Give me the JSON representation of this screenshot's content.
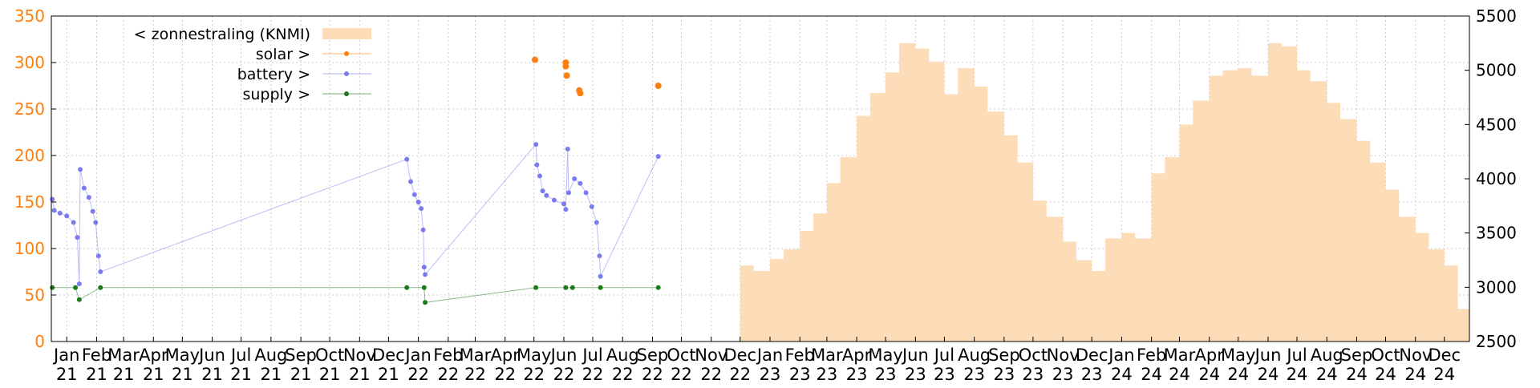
{
  "chart_data": {
    "type": "line",
    "title": "",
    "xlabel": "",
    "ylabel": "",
    "ylim": [
      0,
      350
    ],
    "y2lim": [
      2500,
      5500
    ],
    "y_ticks": [
      0,
      50,
      100,
      150,
      200,
      250,
      300,
      350
    ],
    "y2_ticks": [
      2500,
      3000,
      3500,
      4000,
      4500,
      5000,
      5500
    ],
    "x_range": [
      "2020-12-16",
      "2024-12-27"
    ],
    "x_ticks": [
      {
        "date": "2021-01-01",
        "label": [
          "Jan",
          "21"
        ]
      },
      {
        "date": "2021-02-01",
        "label": [
          "Feb",
          "21"
        ]
      },
      {
        "date": "2021-03-01",
        "label": [
          "Mar",
          "21"
        ]
      },
      {
        "date": "2021-04-01",
        "label": [
          "Apr",
          "21"
        ]
      },
      {
        "date": "2021-05-01",
        "label": [
          "May",
          "21"
        ]
      },
      {
        "date": "2021-06-01",
        "label": [
          "Jun",
          "21"
        ]
      },
      {
        "date": "2021-07-01",
        "label": [
          "Jul",
          "21"
        ]
      },
      {
        "date": "2021-08-01",
        "label": [
          "Aug",
          "21"
        ]
      },
      {
        "date": "2021-09-01",
        "label": [
          "Sep",
          "21"
        ]
      },
      {
        "date": "2021-10-01",
        "label": [
          "Oct",
          "21"
        ]
      },
      {
        "date": "2021-11-01",
        "label": [
          "Nov",
          "21"
        ]
      },
      {
        "date": "2021-12-01",
        "label": [
          "Dec",
          "21"
        ]
      },
      {
        "date": "2022-01-01",
        "label": [
          "Jan",
          "22"
        ]
      },
      {
        "date": "2022-02-01",
        "label": [
          "Feb",
          "22"
        ]
      },
      {
        "date": "2022-03-01",
        "label": [
          "Mar",
          "22"
        ]
      },
      {
        "date": "2022-04-01",
        "label": [
          "Apr",
          "22"
        ]
      },
      {
        "date": "2022-05-01",
        "label": [
          "May",
          "22"
        ]
      },
      {
        "date": "2022-06-01",
        "label": [
          "Jun",
          "22"
        ]
      },
      {
        "date": "2022-07-01",
        "label": [
          "Jul",
          "22"
        ]
      },
      {
        "date": "2022-08-01",
        "label": [
          "Aug",
          "22"
        ]
      },
      {
        "date": "2022-09-01",
        "label": [
          "Sep",
          "22"
        ]
      },
      {
        "date": "2022-10-01",
        "label": [
          "Oct",
          "22"
        ]
      },
      {
        "date": "2022-11-01",
        "label": [
          "Nov",
          "22"
        ]
      },
      {
        "date": "2022-12-01",
        "label": [
          "Dec",
          "22"
        ]
      },
      {
        "date": "2023-01-01",
        "label": [
          "Jan",
          "23"
        ]
      },
      {
        "date": "2023-02-01",
        "label": [
          "Feb",
          "23"
        ]
      },
      {
        "date": "2023-03-01",
        "label": [
          "Mar",
          "23"
        ]
      },
      {
        "date": "2023-04-01",
        "label": [
          "Apr",
          "23"
        ]
      },
      {
        "date": "2023-05-01",
        "label": [
          "May",
          "23"
        ]
      },
      {
        "date": "2023-06-01",
        "label": [
          "Jun",
          "23"
        ]
      },
      {
        "date": "2023-07-01",
        "label": [
          "Jul",
          "23"
        ]
      },
      {
        "date": "2023-08-01",
        "label": [
          "Aug",
          "23"
        ]
      },
      {
        "date": "2023-09-01",
        "label": [
          "Sep",
          "23"
        ]
      },
      {
        "date": "2023-10-01",
        "label": [
          "Oct",
          "23"
        ]
      },
      {
        "date": "2023-11-01",
        "label": [
          "Nov",
          "23"
        ]
      },
      {
        "date": "2023-12-01",
        "label": [
          "Dec",
          "23"
        ]
      },
      {
        "date": "2024-01-01",
        "label": [
          "Jan",
          "24"
        ]
      },
      {
        "date": "2024-02-01",
        "label": [
          "Feb",
          "24"
        ]
      },
      {
        "date": "2024-03-01",
        "label": [
          "Mar",
          "24"
        ]
      },
      {
        "date": "2024-04-01",
        "label": [
          "Apr",
          "24"
        ]
      },
      {
        "date": "2024-05-01",
        "label": [
          "May",
          "24"
        ]
      },
      {
        "date": "2024-06-01",
        "label": [
          "Jun",
          "24"
        ]
      },
      {
        "date": "2024-07-01",
        "label": [
          "Jul",
          "24"
        ]
      },
      {
        "date": "2024-08-01",
        "label": [
          "Aug",
          "24"
        ]
      },
      {
        "date": "2024-09-01",
        "label": [
          "Sep",
          "24"
        ]
      },
      {
        "date": "2024-10-01",
        "label": [
          "Oct",
          "24"
        ]
      },
      {
        "date": "2024-11-01",
        "label": [
          "Nov",
          "24"
        ]
      },
      {
        "date": "2024-12-01",
        "label": [
          "Dec",
          "24"
        ]
      }
    ],
    "grid": true,
    "legend_position": "top-left",
    "series": [
      {
        "name": "< zonnestraling (KNMI)",
        "type": "area",
        "axis": "y2",
        "color": "#fddcb8",
        "points": [
          [
            "2022-12-01",
            3200
          ],
          [
            "2022-12-15",
            3150
          ],
          [
            "2023-01-01",
            3260
          ],
          [
            "2023-01-15",
            3350
          ],
          [
            "2023-02-01",
            3520
          ],
          [
            "2023-02-15",
            3680
          ],
          [
            "2023-03-01",
            3960
          ],
          [
            "2023-03-15",
            4200
          ],
          [
            "2023-04-01",
            4580
          ],
          [
            "2023-04-15",
            4790
          ],
          [
            "2023-05-01",
            4980
          ],
          [
            "2023-05-15",
            5250
          ],
          [
            "2023-06-01",
            5200
          ],
          [
            "2023-06-15",
            5080
          ],
          [
            "2023-07-01",
            4780
          ],
          [
            "2023-07-15",
            5020
          ],
          [
            "2023-08-01",
            4850
          ],
          [
            "2023-08-15",
            4620
          ],
          [
            "2023-09-01",
            4400
          ],
          [
            "2023-09-15",
            4150
          ],
          [
            "2023-10-01",
            3800
          ],
          [
            "2023-10-15",
            3650
          ],
          [
            "2023-11-01",
            3420
          ],
          [
            "2023-11-15",
            3250
          ],
          [
            "2023-12-01",
            3150
          ],
          [
            "2023-12-15",
            3450
          ],
          [
            "2024-01-01",
            3500
          ],
          [
            "2024-01-15",
            3450
          ],
          [
            "2024-02-01",
            4050
          ],
          [
            "2024-02-15",
            4200
          ],
          [
            "2024-03-01",
            4500
          ],
          [
            "2024-03-15",
            4720
          ],
          [
            "2024-04-01",
            4950
          ],
          [
            "2024-04-15",
            5000
          ],
          [
            "2024-05-01",
            5020
          ],
          [
            "2024-05-15",
            4950
          ],
          [
            "2024-06-01",
            5250
          ],
          [
            "2024-06-15",
            5220
          ],
          [
            "2024-07-01",
            5000
          ],
          [
            "2024-07-15",
            4900
          ],
          [
            "2024-08-01",
            4700
          ],
          [
            "2024-08-15",
            4550
          ],
          [
            "2024-09-01",
            4350
          ],
          [
            "2024-09-15",
            4150
          ],
          [
            "2024-10-01",
            3900
          ],
          [
            "2024-10-15",
            3650
          ],
          [
            "2024-11-01",
            3500
          ],
          [
            "2024-11-15",
            3350
          ],
          [
            "2024-12-01",
            3200
          ],
          [
            "2024-12-15",
            2800
          ]
        ]
      },
      {
        "name": "solar >",
        "type": "scatter",
        "axis": "y",
        "color": "#ff7f0e",
        "points": [
          [
            "2022-05-02",
            303
          ],
          [
            "2022-06-03",
            300
          ],
          [
            "2022-06-03",
            296
          ],
          [
            "2022-06-04",
            286
          ],
          [
            "2022-06-17",
            270
          ],
          [
            "2022-06-18",
            267
          ],
          [
            "2022-09-07",
            275
          ]
        ]
      },
      {
        "name": "battery >",
        "type": "line",
        "axis": "y",
        "color": "#7b7bf0",
        "points": [
          [
            "2020-12-17",
            153
          ],
          [
            "2020-12-19",
            141
          ],
          [
            "2020-12-25",
            138
          ],
          [
            "2021-01-01",
            135
          ],
          [
            "2021-01-08",
            128
          ],
          [
            "2021-01-12",
            112
          ],
          [
            "2021-01-14",
            62
          ],
          [
            "2021-01-15",
            185
          ],
          [
            "2021-01-19",
            165
          ],
          [
            "2021-01-24",
            155
          ],
          [
            "2021-01-28",
            140
          ],
          [
            "2021-01-31",
            128
          ],
          [
            "2021-02-03",
            92
          ],
          [
            "2021-02-05",
            75
          ],
          [
            "2021-12-20",
            196
          ],
          [
            "2021-12-24",
            172
          ],
          [
            "2021-12-28",
            158
          ],
          [
            "2022-01-01",
            150
          ],
          [
            "2022-01-04",
            143
          ],
          [
            "2022-01-06",
            120
          ],
          [
            "2022-01-07",
            80
          ],
          [
            "2022-01-08",
            72
          ],
          [
            "2022-05-03",
            212
          ],
          [
            "2022-05-04",
            190
          ],
          [
            "2022-05-07",
            178
          ],
          [
            "2022-05-10",
            162
          ],
          [
            "2022-05-14",
            157
          ],
          [
            "2022-05-22",
            152
          ],
          [
            "2022-06-01",
            148
          ],
          [
            "2022-06-03",
            142
          ],
          [
            "2022-06-05",
            207
          ],
          [
            "2022-06-06",
            160
          ],
          [
            "2022-06-12",
            175
          ],
          [
            "2022-06-18",
            170
          ],
          [
            "2022-06-24",
            160
          ],
          [
            "2022-06-30",
            145
          ],
          [
            "2022-07-05",
            128
          ],
          [
            "2022-07-08",
            92
          ],
          [
            "2022-07-09",
            70
          ],
          [
            "2022-09-07",
            199
          ]
        ]
      },
      {
        "name": "supply >",
        "type": "line",
        "axis": "y",
        "color": "#1a7a1a",
        "points": [
          [
            "2020-12-17",
            58
          ],
          [
            "2021-01-10",
            58
          ],
          [
            "2021-01-14",
            45
          ],
          [
            "2021-02-05",
            58
          ],
          [
            "2021-12-20",
            58
          ],
          [
            "2022-01-07",
            58
          ],
          [
            "2022-01-08",
            42
          ],
          [
            "2022-05-03",
            58
          ],
          [
            "2022-06-03",
            58
          ],
          [
            "2022-06-10",
            58
          ],
          [
            "2022-07-09",
            58
          ],
          [
            "2022-09-07",
            58
          ]
        ]
      }
    ]
  }
}
